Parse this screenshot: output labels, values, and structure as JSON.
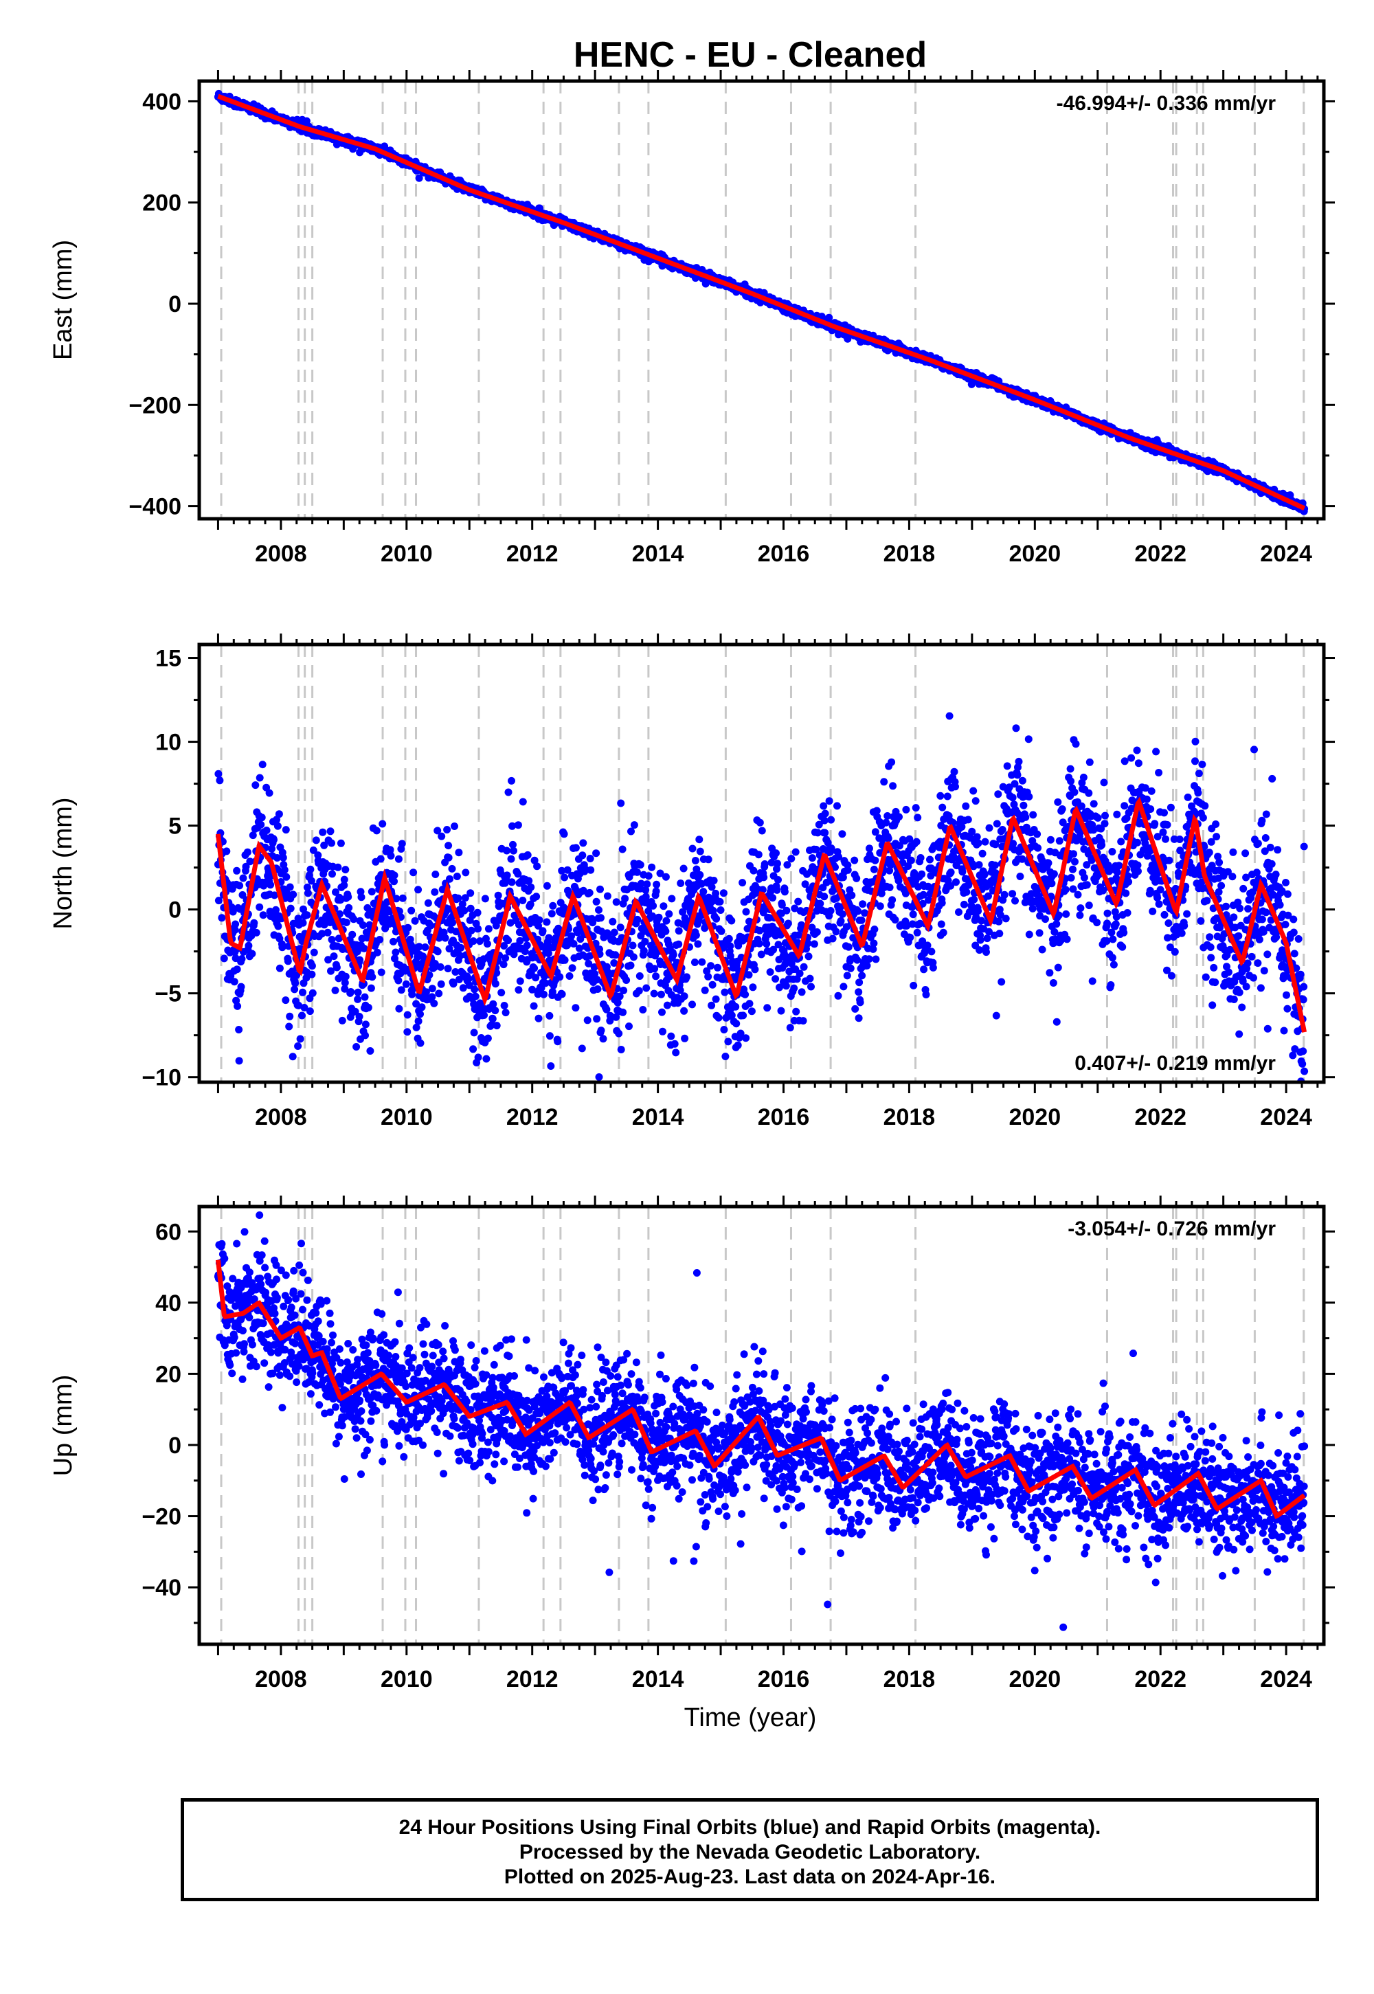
{
  "title": "HENC  - EU - Cleaned",
  "xlabel": "Time (year)",
  "colors": {
    "points": "#0000ff",
    "model": "#ff0000",
    "events": "#c8c8c8",
    "axes": "#000000"
  },
  "footer": {
    "line1": "24 Hour Positions Using Final Orbits (blue) and Rapid Orbits (magenta).",
    "line2": "Processed by the Nevada Geodetic Laboratory.",
    "line3": "Plotted on 2025-Aug-23. Last data on 2024-Apr-16."
  },
  "chart_data": [
    {
      "type": "scatter",
      "component": "east",
      "ylabel": "East (mm)",
      "rate_text": "-46.994+/- 0.336 mm/yr",
      "rate_position": "top-right",
      "xlim": [
        2006.7,
        2024.6
      ],
      "ylim": [
        -425,
        440
      ],
      "yticks": [
        -400,
        -200,
        0,
        200,
        400
      ],
      "xticks": [
        2008,
        2010,
        2012,
        2014,
        2016,
        2018,
        2020,
        2022,
        2024
      ],
      "trend": {
        "x0": 2007.0,
        "y0": 410,
        "rate": -46.994
      },
      "seasonal_amp": 3,
      "scatter_sd": 4,
      "model_points": [
        [
          2007.0,
          410
        ],
        [
          2008.3,
          350
        ],
        [
          2009.5,
          306
        ],
        [
          2011.0,
          225
        ],
        [
          2012.5,
          160
        ],
        [
          2014.0,
          90
        ],
        [
          2015.5,
          20
        ],
        [
          2016.8,
          -45
        ],
        [
          2018.3,
          -110
        ],
        [
          2020.0,
          -190
        ],
        [
          2021.5,
          -265
        ],
        [
          2023.0,
          -330
        ],
        [
          2024.3,
          -405
        ]
      ],
      "grid": false
    },
    {
      "type": "scatter",
      "component": "north",
      "ylabel": "North (mm)",
      "rate_text": "0.407+/- 0.219 mm/yr",
      "rate_position": "bottom-right",
      "xlim": [
        2006.7,
        2024.6
      ],
      "ylim": [
        -10.3,
        15.8
      ],
      "yticks": [
        -10,
        -5,
        0,
        5,
        10,
        15
      ],
      "xticks": [
        2008,
        2010,
        2012,
        2014,
        2016,
        2018,
        2020,
        2022,
        2024
      ],
      "model_points": [
        [
          2007.0,
          4.5
        ],
        [
          2007.2,
          -2.0
        ],
        [
          2007.35,
          -2.3
        ],
        [
          2007.65,
          3.8
        ],
        [
          2007.85,
          2.8
        ],
        [
          2008.3,
          -3.8
        ],
        [
          2008.4,
          -2.0
        ],
        [
          2008.65,
          1.5
        ],
        [
          2009.3,
          -4.3
        ],
        [
          2009.65,
          1.9
        ],
        [
          2010.2,
          -5.0
        ],
        [
          2010.65,
          1.2
        ],
        [
          2011.25,
          -5.4
        ],
        [
          2011.65,
          0.8
        ],
        [
          2012.3,
          -4.0
        ],
        [
          2012.65,
          0.8
        ],
        [
          2013.25,
          -5.2
        ],
        [
          2013.65,
          0.5
        ],
        [
          2014.3,
          -4.2
        ],
        [
          2014.65,
          0.8
        ],
        [
          2015.25,
          -5.2
        ],
        [
          2015.65,
          1.0
        ],
        [
          2016.25,
          -2.8
        ],
        [
          2016.65,
          3.3
        ],
        [
          2017.25,
          -2.2
        ],
        [
          2017.65,
          4.0
        ],
        [
          2018.3,
          -1.0
        ],
        [
          2018.65,
          5.0
        ],
        [
          2019.3,
          -0.7
        ],
        [
          2019.65,
          5.5
        ],
        [
          2020.3,
          -0.3
        ],
        [
          2020.65,
          6.0
        ],
        [
          2021.3,
          0.3
        ],
        [
          2021.65,
          6.5
        ],
        [
          2022.25,
          -0.2
        ],
        [
          2022.55,
          5.5
        ],
        [
          2022.7,
          2.0
        ],
        [
          2023.3,
          -3.2
        ],
        [
          2023.6,
          1.5
        ],
        [
          2024.0,
          -2.0
        ],
        [
          2024.3,
          -7.5
        ]
      ],
      "scatter_sd": 2.2,
      "grid": false
    },
    {
      "type": "scatter",
      "component": "up",
      "ylabel": "Up (mm)",
      "rate_text": "-3.054+/- 0.726 mm/yr",
      "rate_position": "top-right",
      "xlim": [
        2006.7,
        2024.6
      ],
      "ylim": [
        -56,
        67
      ],
      "yticks": [
        -40,
        -20,
        0,
        20,
        40,
        60
      ],
      "xticks": [
        2008,
        2010,
        2012,
        2014,
        2016,
        2018,
        2020,
        2022,
        2024
      ],
      "model_points": [
        [
          2007.0,
          52
        ],
        [
          2007.1,
          36
        ],
        [
          2007.4,
          37
        ],
        [
          2007.65,
          40
        ],
        [
          2008.0,
          30
        ],
        [
          2008.3,
          33
        ],
        [
          2008.5,
          25
        ],
        [
          2008.65,
          26
        ],
        [
          2008.95,
          13
        ],
        [
          2009.6,
          20
        ],
        [
          2010.0,
          12
        ],
        [
          2010.6,
          17
        ],
        [
          2011.0,
          8
        ],
        [
          2011.6,
          12
        ],
        [
          2011.9,
          3
        ],
        [
          2012.6,
          12
        ],
        [
          2012.9,
          2
        ],
        [
          2013.6,
          10
        ],
        [
          2013.9,
          -2
        ],
        [
          2014.6,
          4
        ],
        [
          2014.9,
          -6
        ],
        [
          2015.6,
          8
        ],
        [
          2015.9,
          -3
        ],
        [
          2016.6,
          2
        ],
        [
          2016.9,
          -10
        ],
        [
          2017.6,
          -3
        ],
        [
          2017.9,
          -12
        ],
        [
          2018.6,
          0
        ],
        [
          2018.9,
          -9
        ],
        [
          2019.6,
          -3
        ],
        [
          2019.9,
          -13
        ],
        [
          2020.6,
          -6
        ],
        [
          2020.9,
          -15
        ],
        [
          2021.6,
          -7
        ],
        [
          2021.9,
          -17
        ],
        [
          2022.6,
          -8
        ],
        [
          2022.9,
          -18
        ],
        [
          2023.6,
          -10
        ],
        [
          2023.85,
          -20
        ],
        [
          2024.3,
          -14
        ]
      ],
      "scatter_sd": 8,
      "grid": false
    }
  ],
  "event_lines": [
    2007.05,
    2008.28,
    2008.38,
    2008.5,
    2009.62,
    2009.98,
    2010.15,
    2011.15,
    2012.18,
    2012.45,
    2013.38,
    2013.85,
    2015.08,
    2016.12,
    2016.75,
    2018.1,
    2021.15,
    2022.2,
    2022.25,
    2022.58,
    2022.68,
    2023.5,
    2024.28
  ]
}
